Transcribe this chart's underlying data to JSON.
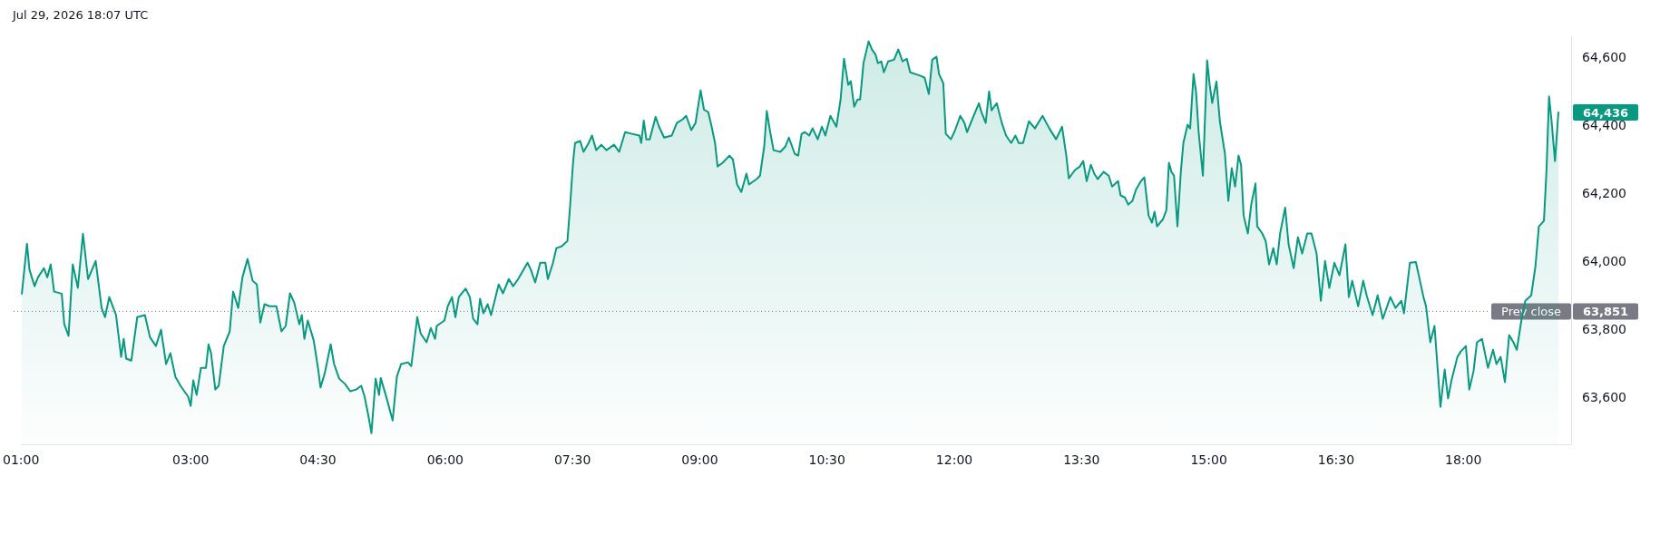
{
  "chart_data": {
    "type": "area",
    "annotations": [
      {
        "text": "Jul 29, 2026 18:07 UTC"
      },
      "64,436",
      "63,851"
    ],
    "xlim": [
      1,
      19.27
    ],
    "ylim": [
      63460,
      64660
    ],
    "xticks": [
      {
        "value": 1,
        "label": "01:00"
      },
      {
        "value": 3,
        "label": "03:00"
      },
      {
        "value": 4.5,
        "label": "04:30"
      },
      {
        "value": 6,
        "label": "06:00"
      },
      {
        "value": 7.5,
        "label": "07:30"
      },
      {
        "value": 9,
        "label": "09:00"
      },
      {
        "value": 10.5,
        "label": "10:30"
      },
      {
        "value": 12,
        "label": "12:00"
      },
      {
        "value": 13.5,
        "label": "13:30"
      },
      {
        "value": 15,
        "label": "15:00"
      },
      {
        "value": 16.5,
        "label": "16:30"
      },
      {
        "value": 18,
        "label": "18:00"
      }
    ],
    "yticks": [
      {
        "value": 63600,
        "label": "63,600"
      },
      {
        "value": 63800,
        "label": "63,800"
      },
      {
        "value": 64000,
        "label": "64,000"
      },
      {
        "value": 64200,
        "label": "64,200"
      },
      {
        "value": 64400,
        "label": "64,400"
      },
      {
        "value": 64600,
        "label": "64,600"
      }
    ],
    "ref_lines": [
      {
        "axis": "y",
        "value": 63851,
        "label": "Prev close",
        "color": "#787b86",
        "line_style": "dotted"
      }
    ],
    "marker": "none",
    "line_style": "solid",
    "series": [
      {
        "color": "#089981",
        "x": [
          1.01,
          1.07,
          1.1,
          1.16,
          1.2,
          1.27,
          1.31,
          1.35,
          1.39,
          1.48,
          1.51,
          1.56,
          1.61,
          1.67,
          1.73,
          1.79,
          1.88,
          1.95,
          1.99,
          2.04,
          2.12,
          2.18,
          2.21,
          2.24,
          2.3,
          2.37,
          2.46,
          2.52,
          2.59,
          2.65,
          2.71,
          2.76,
          2.82,
          2.88,
          2.97,
          3.0,
          3.03,
          3.07,
          3.12,
          3.18,
          3.21,
          3.24,
          3.29,
          3.33,
          3.39,
          3.46,
          3.5,
          3.56,
          3.61,
          3.67,
          3.73,
          3.78,
          3.82,
          3.87,
          3.93,
          4.01,
          4.07,
          4.12,
          4.17,
          4.22,
          4.28,
          4.31,
          4.34,
          4.38,
          4.45,
          4.5,
          4.53,
          4.58,
          4.65,
          4.69,
          4.75,
          4.82,
          4.88,
          4.95,
          5.01,
          5.05,
          5.1,
          5.13,
          5.18,
          5.22,
          5.24,
          5.31,
          5.38,
          5.43,
          5.48,
          5.56,
          5.6,
          5.67,
          5.71,
          5.78,
          5.83,
          5.88,
          5.9,
          5.99,
          6.03,
          6.08,
          6.12,
          6.16,
          6.24,
          6.29,
          6.33,
          6.38,
          6.41,
          6.45,
          6.5,
          6.54,
          6.63,
          6.68,
          6.75,
          6.8,
          6.86,
          6.97,
          7.01,
          7.06,
          7.12,
          7.18,
          7.21,
          7.27,
          7.31,
          7.37,
          7.44,
          7.47,
          7.5,
          7.51,
          7.53,
          7.59,
          7.63,
          7.69,
          7.73,
          7.78,
          7.84,
          7.9,
          7.99,
          8.05,
          8.12,
          8.2,
          8.29,
          8.31,
          8.34,
          8.37,
          8.41,
          8.48,
          8.52,
          8.58,
          8.67,
          8.73,
          8.8,
          8.84,
          8.9,
          8.95,
          9.01,
          9.05,
          9.1,
          9.14,
          9.18,
          9.21,
          9.27,
          9.35,
          9.39,
          9.44,
          9.49,
          9.55,
          9.58,
          9.67,
          9.71,
          9.76,
          9.79,
          9.83,
          9.87,
          9.95,
          10.01,
          10.05,
          10.12,
          10.16,
          10.2,
          10.24,
          10.29,
          10.33,
          10.39,
          10.44,
          10.48,
          10.54,
          10.61,
          10.63,
          10.66,
          10.7,
          10.75,
          10.78,
          10.82,
          10.86,
          10.89,
          10.93,
          10.99,
          11.03,
          11.07,
          11.1,
          11.14,
          11.17,
          11.22,
          11.29,
          11.34,
          11.39,
          11.44,
          11.48,
          11.54,
          11.61,
          11.65,
          11.7,
          11.74,
          11.79,
          11.82,
          11.87,
          11.9,
          11.96,
          12.01,
          12.07,
          12.12,
          12.15,
          12.22,
          12.29,
          12.32,
          12.37,
          12.41,
          12.44,
          12.5,
          12.56,
          12.61,
          12.67,
          12.72,
          12.76,
          12.81,
          12.88,
          12.95,
          13.04,
          13.12,
          13.2,
          13.27,
          13.32,
          13.35,
          13.42,
          13.48,
          13.52,
          13.56,
          13.61,
          13.65,
          13.69,
          13.76,
          13.82,
          13.86,
          13.93,
          13.96,
          14.01,
          14.05,
          14.1,
          14.14,
          14.2,
          14.24,
          14.29,
          14.33,
          14.36,
          14.39,
          14.46,
          14.5,
          14.53,
          14.56,
          14.59,
          14.63,
          14.67,
          14.7,
          14.75,
          14.78,
          14.82,
          14.85,
          14.88,
          14.93,
          14.98,
          15.01,
          15.04,
          15.09,
          15.13,
          15.19,
          15.23,
          15.27,
          15.31,
          15.35,
          15.38,
          15.41,
          15.46,
          15.5,
          15.55,
          15.57,
          15.63,
          15.67,
          15.71,
          15.76,
          15.8,
          15.84,
          15.9,
          15.94,
          16.0,
          16.05,
          16.1,
          16.16,
          16.21,
          16.27,
          16.32,
          16.37,
          16.42,
          16.48,
          16.54,
          16.61,
          16.65,
          16.69,
          16.76,
          16.82,
          16.86,
          16.93,
          16.99,
          17.05,
          17.14,
          17.2,
          17.27,
          17.3,
          17.37,
          17.44,
          17.48,
          17.53,
          17.56,
          17.61,
          17.66,
          17.73,
          17.78,
          17.82,
          17.86,
          17.93,
          17.97,
          18.03,
          18.07,
          18.12,
          18.16,
          18.22,
          18.29,
          18.35,
          18.39,
          18.44,
          18.49,
          18.54,
          18.59,
          18.63,
          18.69,
          18.73,
          18.8,
          18.85,
          18.89,
          18.95,
          18.98,
          19.01,
          19.04,
          19.08,
          19.12
        ],
        "values": [
          63903,
          64050,
          63973,
          63925,
          63951,
          63978,
          63951,
          63989,
          63909,
          63903,
          63813,
          63779,
          63989,
          63920,
          64079,
          63946,
          63999,
          63861,
          63834,
          63893,
          63840,
          63717,
          63770,
          63712,
          63706,
          63834,
          63840,
          63775,
          63749,
          63797,
          63696,
          63728,
          63658,
          63632,
          63600,
          63573,
          63648,
          63605,
          63685,
          63685,
          63754,
          63728,
          63621,
          63632,
          63749,
          63792,
          63909,
          63861,
          63951,
          64005,
          63941,
          63930,
          63818,
          63872,
          63866,
          63866,
          63792,
          63808,
          63904,
          63877,
          63813,
          63840,
          63770,
          63824,
          63765,
          63685,
          63627,
          63669,
          63754,
          63696,
          63653,
          63637,
          63616,
          63621,
          63632,
          63600,
          63536,
          63493,
          63653,
          63605,
          63655,
          63595,
          63530,
          63659,
          63696,
          63701,
          63690,
          63834,
          63786,
          63760,
          63802,
          63770,
          63808,
          63824,
          63866,
          63893,
          63834,
          63893,
          63918,
          63893,
          63829,
          63813,
          63888,
          63845,
          63872,
          63840,
          63930,
          63904,
          63946,
          63925,
          63946,
          63994,
          63973,
          63936,
          63994,
          63994,
          63946,
          63994,
          64037,
          64042,
          64058,
          64154,
          64266,
          64298,
          64346,
          64352,
          64320,
          64346,
          64368,
          64325,
          64341,
          64325,
          64341,
          64320,
          64378,
          64373,
          64368,
          64346,
          64412,
          64357,
          64357,
          64423,
          64394,
          64362,
          64368,
          64405,
          64416,
          64426,
          64384,
          64405,
          64501,
          64444,
          64437,
          64394,
          64346,
          64277,
          64288,
          64309,
          64298,
          64224,
          64202,
          64256,
          64224,
          64240,
          64250,
          64336,
          64440,
          64378,
          64325,
          64320,
          64336,
          64362,
          64314,
          64309,
          64373,
          64378,
          64368,
          64389,
          64357,
          64394,
          64368,
          64426,
          64394,
          64426,
          64474,
          64594,
          64517,
          64528,
          64453,
          64474,
          64474,
          64581,
          64645,
          64621,
          64607,
          64581,
          64586,
          64554,
          64586,
          64591,
          64621,
          64586,
          64594,
          64554,
          64549,
          64543,
          64538,
          64490,
          64591,
          64600,
          64549,
          64522,
          64373,
          64357,
          64384,
          64426,
          64405,
          64378,
          64421,
          64463,
          64437,
          64405,
          64498,
          64442,
          64463,
          64405,
          64368,
          64346,
          64368,
          64346,
          64346,
          64410,
          64389,
          64426,
          64389,
          64357,
          64394,
          64309,
          64242,
          64266,
          64277,
          64293,
          64234,
          64282,
          64256,
          64240,
          64261,
          64250,
          64218,
          64234,
          64192,
          64186,
          64165,
          64176,
          64208,
          64234,
          64245,
          64133,
          64112,
          64144,
          64101,
          64122,
          64149,
          64288,
          64261,
          64250,
          64101,
          64261,
          64346,
          64400,
          64389,
          64549,
          64495,
          64378,
          64250,
          64589,
          64517,
          64464,
          64527,
          64410,
          64314,
          64176,
          64272,
          64218,
          64309,
          64282,
          64133,
          64080,
          64165,
          64227,
          64101,
          64080,
          64058,
          63989,
          64037,
          63989,
          64080,
          64156,
          64048,
          63978,
          64069,
          64021,
          64080,
          64080,
          64021,
          63882,
          63999,
          63920,
          63994,
          63957,
          64048,
          63893,
          63941,
          63866,
          63941,
          63898,
          63840,
          63898,
          63829,
          63893,
          63861,
          63882,
          63845,
          63994,
          63996,
          63951,
          63893,
          63866,
          63760,
          63808,
          63570,
          63680,
          63595,
          63648,
          63717,
          63733,
          63749,
          63621,
          63675,
          63760,
          63770,
          63685,
          63738,
          63696,
          63717,
          63643,
          63781,
          63760,
          63738,
          63834,
          63882,
          63898,
          63984,
          64101,
          64117,
          64266,
          64483,
          64410,
          64293,
          64436
        ]
      }
    ]
  }
}
